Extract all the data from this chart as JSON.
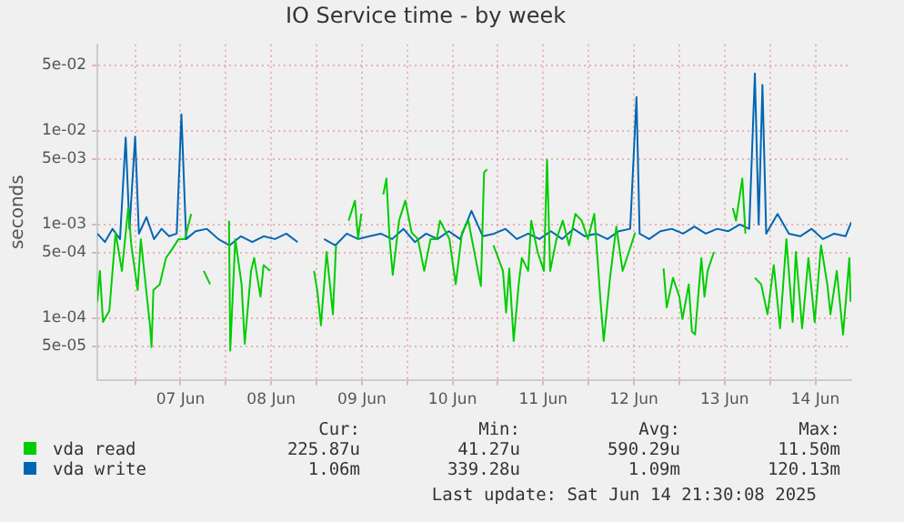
{
  "chart_data": {
    "type": "line",
    "title": "IO Service time - by week",
    "ylabel": "seconds",
    "log": true,
    "grid": true,
    "legend": "bottom",
    "marker": "none",
    "line_style": "solid",
    "xlim": [
      "2025-06-06T14:00",
      "2025-06-14T21:30"
    ],
    "xticks": [
      {
        "value": "2025-06-07T00:00",
        "label": null
      },
      {
        "value": "2025-06-07T12:00",
        "label": "07 Jun"
      },
      {
        "value": "2025-06-08T00:00",
        "label": null
      },
      {
        "value": "2025-06-08T12:00",
        "label": "08 Jun"
      },
      {
        "value": "2025-06-09T00:00",
        "label": null
      },
      {
        "value": "2025-06-09T12:00",
        "label": "09 Jun"
      },
      {
        "value": "2025-06-10T00:00",
        "label": null
      },
      {
        "value": "2025-06-10T12:00",
        "label": "10 Jun"
      },
      {
        "value": "2025-06-11T00:00",
        "label": null
      },
      {
        "value": "2025-06-11T12:00",
        "label": "11 Jun"
      },
      {
        "value": "2025-06-12T00:00",
        "label": null
      },
      {
        "value": "2025-06-12T12:00",
        "label": "12 Jun"
      },
      {
        "value": "2025-06-13T00:00",
        "label": null
      },
      {
        "value": "2025-06-13T12:00",
        "label": "13 Jun"
      },
      {
        "value": "2025-06-14T00:00",
        "label": null
      },
      {
        "value": "2025-06-14T12:00",
        "label": "14 Jun"
      }
    ],
    "ylim": [
      2.2e-05,
      0.084
    ],
    "yticks": [
      {
        "value": 5e-05,
        "label": "5e-05"
      },
      {
        "value": 0.0001,
        "label": "1e-04"
      },
      {
        "value": 0.0005,
        "label": "5e-04"
      },
      {
        "value": 0.001,
        "label": "1e-03"
      },
      {
        "value": 0.005,
        "label": "5e-03"
      },
      {
        "value": 0.01,
        "label": "1e-02"
      },
      {
        "value": 0.05,
        "label": "5e-02"
      }
    ],
    "series": [
      {
        "name": "vda read",
        "color": "#00cc00",
        "x": [
          "2025-06-06T14:00",
          "2025-06-06T14:40",
          "2025-06-06T15:30",
          "2025-06-06T17:10",
          "2025-06-06T18:50",
          "2025-06-06T20:30",
          "2025-06-06T22:10",
          "2025-06-06T23:00",
          "2025-06-07T00:40",
          "2025-06-07T01:30",
          "2025-06-07T04:00",
          "2025-06-07T04:20",
          "2025-06-07T04:50",
          "2025-06-07T06:30",
          "2025-06-07T08:10",
          "2025-06-07T09:50",
          "2025-06-07T11:30",
          "2025-06-07T13:10",
          "2025-06-07T14:50",
          "2025-06-07T16:00",
          "2025-06-07T18:10",
          "2025-06-07T19:50",
          "2025-06-07T21:00",
          "2025-06-08T00:50",
          "2025-06-08T01:10",
          "2025-06-08T02:30",
          "2025-06-08T04:10",
          "2025-06-08T05:00",
          "2025-06-08T06:40",
          "2025-06-08T07:30",
          "2025-06-08T09:10",
          "2025-06-08T10:00",
          "2025-06-08T11:40",
          "2025-06-08T14:00",
          "2025-06-08T23:20",
          "2025-06-09T00:10",
          "2025-06-09T01:10",
          "2025-06-09T02:40",
          "2025-06-09T04:20",
          "2025-06-09T05:10",
          "2025-06-09T06:00",
          "2025-06-09T08:30",
          "2025-06-09T10:10",
          "2025-06-09T11:00",
          "2025-06-09T11:50",
          "2025-06-09T12:30",
          "2025-06-09T17:40",
          "2025-06-09T18:30",
          "2025-06-09T19:20",
          "2025-06-09T20:10",
          "2025-06-09T21:50",
          "2025-06-09T23:30",
          "2025-06-10T01:10",
          "2025-06-10T02:50",
          "2025-06-10T04:30",
          "2025-06-10T06:10",
          "2025-06-10T07:50",
          "2025-06-10T08:40",
          "2025-06-10T11:10",
          "2025-06-10T12:50",
          "2025-06-10T14:30",
          "2025-06-10T16:10",
          "2025-06-10T19:30",
          "2025-06-10T20:20",
          "2025-06-10T21:10",
          "2025-06-10T22:00",
          "2025-06-10T22:50",
          "2025-06-11T01:20",
          "2025-06-11T02:10",
          "2025-06-11T03:00",
          "2025-06-11T04:10",
          "2025-06-11T05:30",
          "2025-06-11T06:20",
          "2025-06-11T08:00",
          "2025-06-11T08:50",
          "2025-06-11T10:30",
          "2025-06-11T12:10",
          "2025-06-11T13:00",
          "2025-06-11T13:50",
          "2025-06-11T15:30",
          "2025-06-11T17:10",
          "2025-06-11T18:50",
          "2025-06-11T20:30",
          "2025-06-11T22:10",
          "2025-06-11T23:50",
          "2025-06-12T01:30",
          "2025-06-12T03:10",
          "2025-06-12T04:00",
          "2025-06-12T05:40",
          "2025-06-12T07:20",
          "2025-06-12T09:00",
          "2025-06-12T10:40",
          "2025-06-12T12:20",
          "2025-06-12T14:00",
          "2025-06-12T19:50",
          "2025-06-12T20:40",
          "2025-06-12T22:20",
          "2025-06-13T00:00",
          "2025-06-13T00:50",
          "2025-06-13T02:30",
          "2025-06-13T03:20",
          "2025-06-13T04:10",
          "2025-06-13T05:50",
          "2025-06-13T06:40",
          "2025-06-13T07:30",
          "2025-06-13T09:10",
          "2025-06-13T11:00",
          "2025-06-13T14:10",
          "2025-06-13T15:00",
          "2025-06-13T16:40",
          "2025-06-13T17:30",
          "2025-06-13T18:30",
          "2025-06-13T20:00",
          "2025-06-13T21:40",
          "2025-06-13T23:20",
          "2025-06-14T01:00",
          "2025-06-14T02:40",
          "2025-06-14T04:20",
          "2025-06-14T06:00",
          "2025-06-14T06:50",
          "2025-06-14T08:30",
          "2025-06-14T10:10",
          "2025-06-14T11:50",
          "2025-06-14T13:30",
          "2025-06-14T15:10",
          "2025-06-14T16:00",
          "2025-06-14T17:40",
          "2025-06-14T19:20",
          "2025-06-14T21:00",
          "2025-06-14T21:20"
        ],
        "values": [
          0.00015,
          0.00032,
          9.1e-05,
          0.00012,
          0.00082,
          0.00032,
          0.0015,
          0.0006,
          0.0002,
          0.0007,
          7.8e-05,
          4.9e-05,
          0.0002,
          0.00023,
          0.00044,
          0.00055,
          0.0007,
          0.0007,
          0.0013,
          null,
          0.00032,
          0.00023,
          null,
          0.0011,
          4.5e-05,
          0.0007,
          0.00023,
          5.3e-05,
          0.00032,
          0.00044,
          0.00017,
          0.00037,
          0.00032,
          null,
          0.00032,
          0.0002,
          8.4e-05,
          0.00051,
          0.00011,
          0.0006,
          null,
          0.0011,
          0.0018,
          0.0007,
          0.0013,
          null,
          0.0021,
          0.0031,
          0.0007,
          0.00029,
          0.0011,
          0.0018,
          0.00082,
          0.0007,
          0.00032,
          0.0007,
          0.0007,
          0.0011,
          0.0007,
          0.00023,
          0.00082,
          0.0011,
          0.00022,
          0.0036,
          0.0039,
          null,
          0.0006,
          0.00032,
          0.000115,
          0.00034,
          5.7e-05,
          0.00023,
          0.00044,
          0.00032,
          0.0011,
          0.00051,
          0.00032,
          0.0049,
          0.00032,
          0.0007,
          0.0011,
          0.0006,
          0.0013,
          0.0011,
          0.0007,
          0.0013,
          0.00015,
          5.7e-05,
          0.00027,
          0.00095,
          0.00032,
          0.00051,
          0.00082,
          null,
          0.00034,
          0.00013,
          0.00027,
          0.00017,
          9.8e-05,
          0.00023,
          7.2e-05,
          6.7e-05,
          0.00044,
          0.00017,
          0.00032,
          0.00051,
          null,
          0.0015,
          0.0011,
          0.0031,
          0.0008,
          null,
          0.00027,
          0.00023,
          0.00011,
          0.00037,
          7.8e-05,
          0.0007,
          9.1e-05,
          0.00051,
          7.8e-05,
          0.00044,
          9.1e-05,
          0.0006,
          0.00023,
          0.00011,
          0.00032,
          6.7e-05,
          0.00044,
          0.00015
        ]
      },
      {
        "name": "vda write",
        "color": "#0066b3",
        "x": [
          "2025-06-06T14:00",
          "2025-06-06T16:00",
          "2025-06-06T18:00",
          "2025-06-06T20:00",
          "2025-06-06T21:30",
          "2025-06-06T22:30",
          "2025-06-07T00:00",
          "2025-06-07T01:00",
          "2025-06-07T03:00",
          "2025-06-07T05:00",
          "2025-06-07T07:00",
          "2025-06-07T09:00",
          "2025-06-07T11:00",
          "2025-06-07T12:15",
          "2025-06-07T13:30",
          "2025-06-07T16:00",
          "2025-06-07T19:00",
          "2025-06-07T22:00",
          "2025-06-08T01:00",
          "2025-06-08T04:00",
          "2025-06-08T07:00",
          "2025-06-08T10:00",
          "2025-06-08T13:00",
          "2025-06-08T16:00",
          "2025-06-08T19:00",
          "2025-06-08T22:00",
          "2025-06-09T02:00",
          "2025-06-09T05:00",
          "2025-06-09T08:00",
          "2025-06-09T11:00",
          "2025-06-09T14:00",
          "2025-06-09T17:00",
          "2025-06-09T20:00",
          "2025-06-09T23:00",
          "2025-06-10T02:00",
          "2025-06-10T05:00",
          "2025-06-10T08:00",
          "2025-06-10T11:00",
          "2025-06-10T14:00",
          "2025-06-10T17:00",
          "2025-06-10T20:00",
          "2025-06-10T23:00",
          "2025-06-11T02:00",
          "2025-06-11T05:00",
          "2025-06-11T08:00",
          "2025-06-11T11:00",
          "2025-06-11T14:00",
          "2025-06-11T17:00",
          "2025-06-11T20:00",
          "2025-06-11T23:00",
          "2025-06-12T02:00",
          "2025-06-12T05:00",
          "2025-06-12T08:00",
          "2025-06-12T11:00",
          "2025-06-12T12:40",
          "2025-06-12T13:30",
          "2025-06-12T16:00",
          "2025-06-12T19:00",
          "2025-06-12T22:00",
          "2025-06-13T01:00",
          "2025-06-13T04:00",
          "2025-06-13T07:00",
          "2025-06-13T10:00",
          "2025-06-13T13:00",
          "2025-06-13T16:00",
          "2025-06-13T18:30",
          "2025-06-13T20:00",
          "2025-06-13T21:00",
          "2025-06-13T22:00",
          "2025-06-13T23:00",
          "2025-06-14T02:00",
          "2025-06-14T05:00",
          "2025-06-14T08:00",
          "2025-06-14T11:00",
          "2025-06-14T14:00",
          "2025-06-14T17:00",
          "2025-06-14T20:00",
          "2025-06-14T21:30"
        ],
        "values": [
          0.0008,
          0.00065,
          0.0009,
          0.0007,
          0.0085,
          0.0009,
          0.0087,
          0.0008,
          0.0012,
          0.0007,
          0.0009,
          0.00075,
          0.0008,
          0.015,
          0.0007,
          0.00085,
          0.0009,
          0.0007,
          0.0006,
          0.00075,
          0.00065,
          0.00075,
          0.0007,
          0.0008,
          0.00065,
          null,
          0.0007,
          0.0006,
          0.0008,
          0.0007,
          0.00075,
          0.0008,
          0.0007,
          0.0009,
          0.00065,
          0.0008,
          0.0007,
          0.00085,
          0.0007,
          0.0014,
          0.00075,
          0.0008,
          0.0009,
          0.0007,
          0.0008,
          0.0007,
          0.00085,
          0.0007,
          0.0009,
          0.00075,
          0.0008,
          0.0007,
          0.00085,
          0.0009,
          0.023,
          0.0008,
          0.0007,
          0.00085,
          0.0009,
          0.0008,
          0.00095,
          0.0008,
          0.0009,
          0.00085,
          0.001,
          0.0009,
          0.041,
          0.001,
          0.031,
          0.0008,
          0.0013,
          0.0008,
          0.00075,
          0.0009,
          0.0007,
          0.0008,
          0.00075,
          0.00106
        ]
      }
    ],
    "annotations": [
      "Cur:",
      "Min:",
      "Avg:",
      "Max:",
      "225.87u",
      "41.27u",
      "590.29u",
      "11.50m",
      "1.06m",
      "339.28u",
      "1.09m",
      "120.13m",
      "Last update: Sat Jun 14 21:30:08 2025"
    ]
  }
}
